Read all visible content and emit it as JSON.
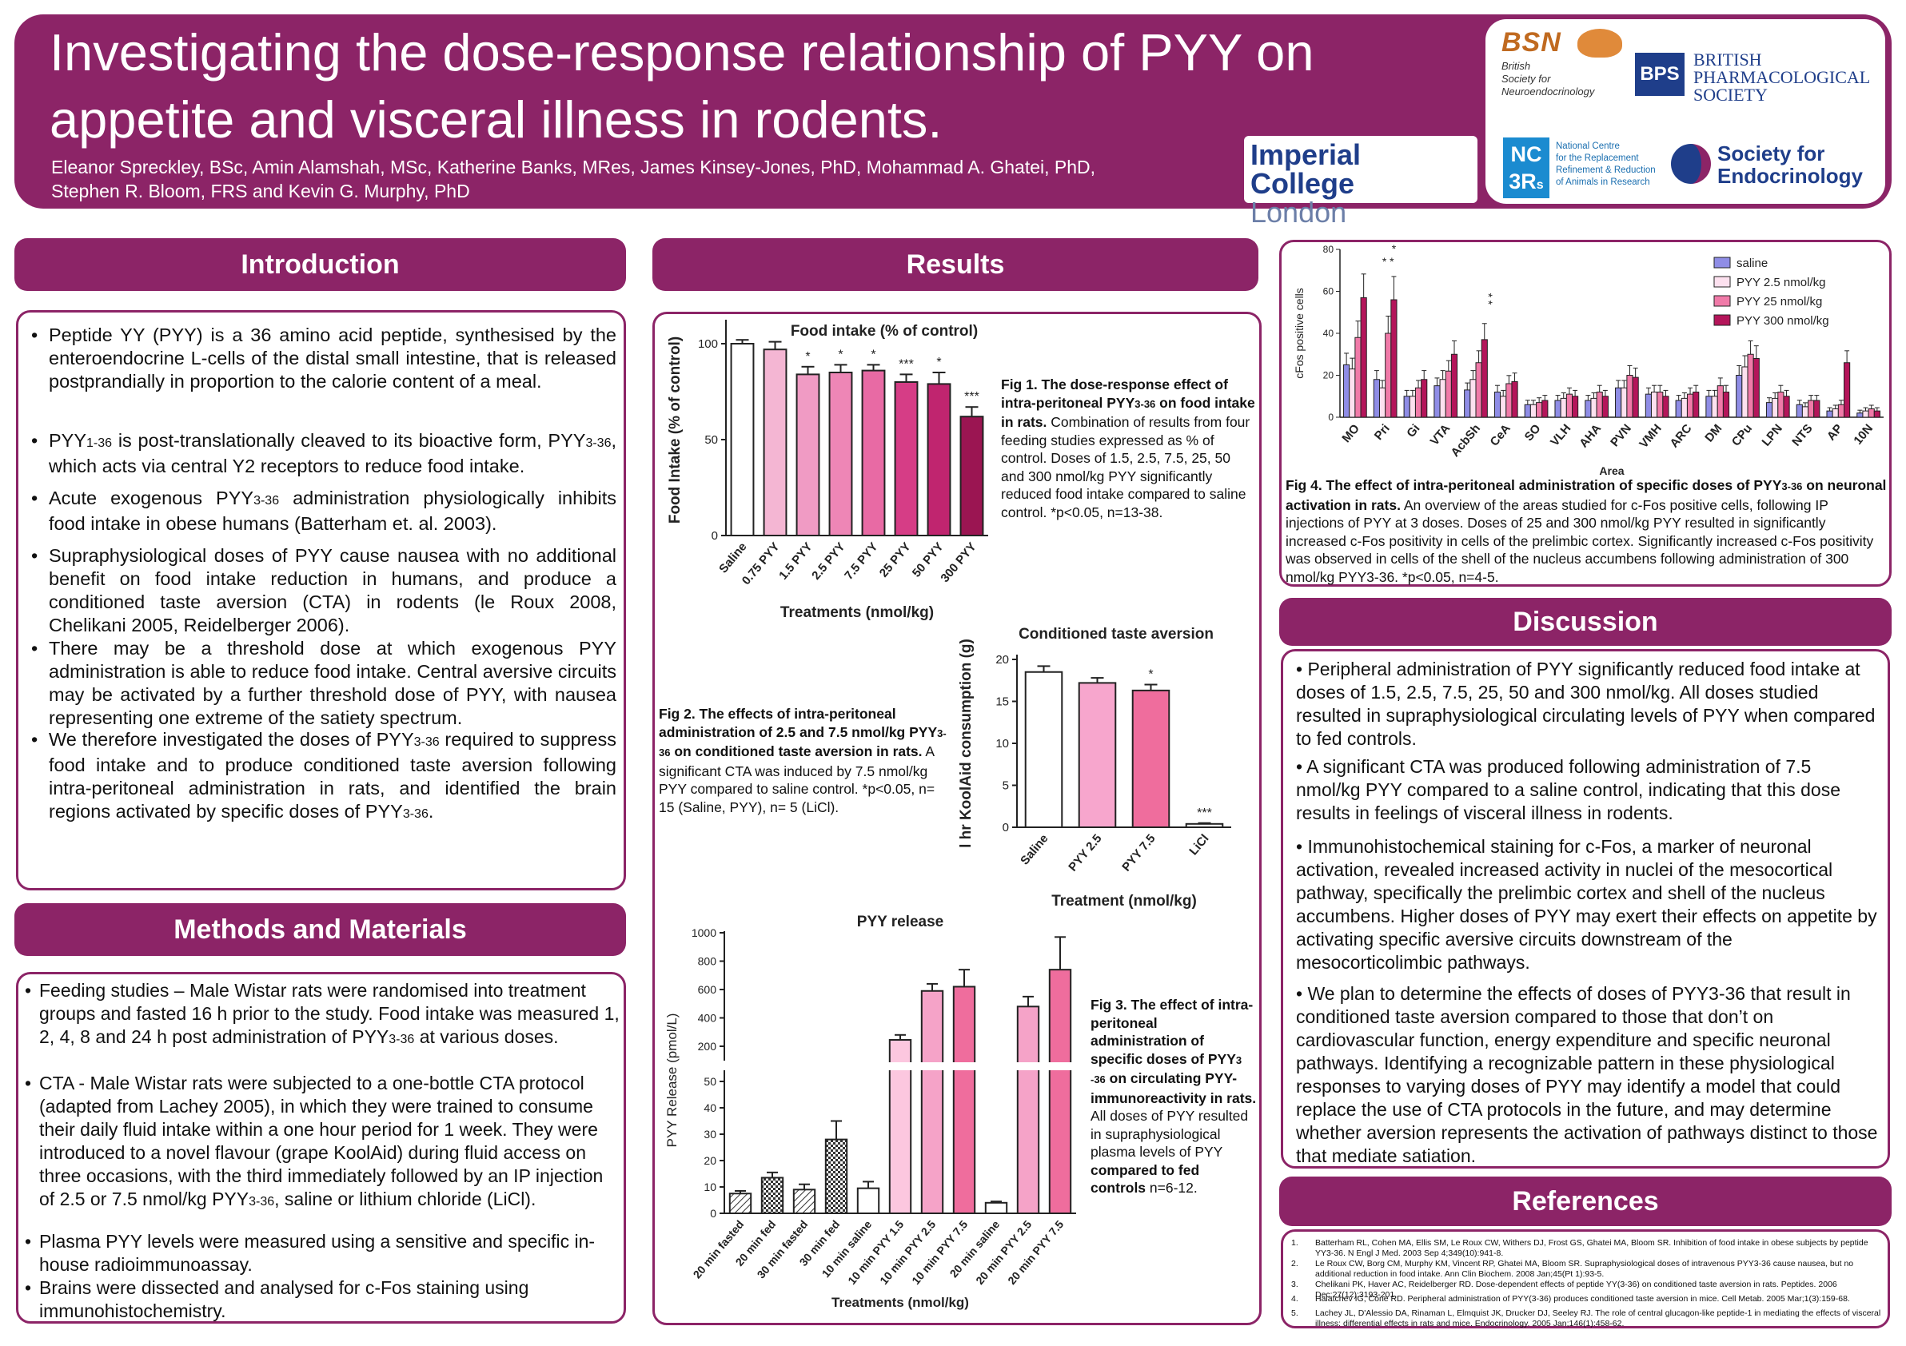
{
  "header": {
    "title_line1": "Investigating the dose-response relationship of PYY on",
    "title_line2": "appetite and visceral illness in rodents.",
    "authors_line1": "Eleanor Spreckley, BSc, Amin Alamshah, MSc, Katherine Banks, MRes, James Kinsey-Jones, PhD, Mohammad A. Ghatei, PhD,",
    "authors_line2": "Stephen R. Bloom, FRS and Kevin G. Murphy, PhD"
  },
  "logos": {
    "bsn_mark": "BSN",
    "bsn_text": [
      "British",
      "Society for",
      "Neuroendocrinology"
    ],
    "bps_mark": "BPS",
    "bps_text": [
      "BRITISH",
      "PHARMACOLOGICAL",
      "SOCIETY"
    ],
    "imperial_1": "Imperial College",
    "imperial_2": "London",
    "nc3rs_mark1": "NC",
    "nc3rs_mark2": "3R",
    "nc3rs_mark_sup": "s",
    "nc3rs_text": [
      "National Centre",
      "for the Replacement",
      "Refinement & Reduction",
      "of Animals in Research"
    ],
    "sfe_1": "Society for",
    "sfe_2": "Endocrinology"
  },
  "sections": {
    "introduction": "Introduction",
    "results": "Results",
    "methods": "Methods and Materials",
    "discussion": "Discussion",
    "references": "References"
  },
  "introduction": [
    {
      "pre": "Peptide YY (PYY) is a 36 amino acid peptide, synthesised by the enteroendocrine L-cells of the distal small intestine, that is released postprandially in proportion to the calorie content of a meal."
    },
    {
      "pre": "PYY",
      "sub": "1-36",
      "mid": " is post-translationally cleaved to its bioactive  form, PYY",
      "sub2": "3-36",
      "post": ", which acts via central Y2 receptors to reduce food intake."
    },
    {
      "pre": " Acute exogenous PYY",
      "sub": "3-36",
      "post": " administration physiologically inhibits food intake in obese humans (Batterham et. al. 2003)."
    },
    {
      "pre": " Supraphysiological doses of PYY cause nausea with no additional benefit on food intake reduction in humans, and produce a conditioned taste aversion (CTA) in rodents (le Roux 2008, Chelikani 2005, Reidelberger 2006)."
    },
    {
      "pre": " There may be a threshold dose at which exogenous PYY administration is able to reduce food intake. Central aversive circuits may be activated by a further threshold dose of PYY, with nausea representing one extreme of the satiety spectrum."
    },
    {
      "pre": "We therefore investigated the doses of PYY",
      "sub": "3-36",
      "mid": " required to suppress food intake and to produce conditioned taste aversion following intra-peritoneal administration in rats, and identified the brain regions activated by specific doses of PYY",
      "sub2": "3-36",
      "post": "."
    }
  ],
  "methods": [
    {
      "pre": "Feeding studies – Male Wistar rats were randomised into treatment groups and fasted 16 h prior to the study. Food intake was measured 1, 2, 4, 8 and 24 h post administration of PYY",
      "sub": "3-36",
      "post": " at various doses."
    },
    {
      "pre": "CTA - Male Wistar rats were subjected to a one-bottle CTA protocol (adapted from Lachey 2005), in which they were trained to consume their daily fluid intake within a one hour period for 1 week. They were introduced to a novel flavour (grape KoolAid) during fluid access on three occasions, with the third immediately followed by an IP injection of 2.5 or 7.5 nmol/kg PYY",
      "sub": "3-36",
      "post": ", saline or lithium chloride (LiCl)."
    },
    {
      "pre": "Plasma PYY levels were measured using a sensitive and specific in-house radioimmunoassay."
    },
    {
      "pre": "Brains were dissected and analysed for c-Fos staining using immunohistochemistry."
    }
  ],
  "fig1": {
    "bold1": "Fig 1. The dose-response effect of intra-peritoneal PYY",
    "sub": "3-36",
    "bold2": " on food intake in rats.",
    "text": " Combination of results from four feeding studies expressed as % of control. Doses of 1.5, 2.5, 7.5, 25, 50 and 300 nmol/kg PYY significantly reduced food intake compared to saline control. *p<0.05, n=13-38."
  },
  "fig2": {
    "bold1": "Fig 2. The effects of intra-peritoneal administration of 2.5 and 7.5 nmol/kg PYY",
    "sub": "3-36",
    "bold2": " on conditioned taste aversion in rats.",
    "text": " A significant CTA was induced by 7.5 nmol/kg PYY compared to saline control. *p<0.05, n= 15 (Saline, PYY), n= 5 (LiCl)."
  },
  "fig3": {
    "bold1": "Fig 3. The effect of intra-peritoneal administration of specific doses of PYY",
    "sub": "3 -36",
    "bold2": " on circulating PYY-immunoreactivity in rats.",
    "text": " All doses of PYY resulted in supraphysiological plasma levels of PYY ",
    "bold3": "compared to fed controls",
    "text2": " n=6-12."
  },
  "fig4": {
    "bold1": "Fig 4. The effect of intra-peritoneal administration of specific doses of PYY",
    "sub": "3-36",
    "bold2": " on neuronal activation in rats.",
    "text": "  An overview of the areas studied for c-Fos positive cells, following IP injections of PYY at 3 doses. Doses of 25 and 300 nmol/kg PYY resulted in significantly increased c-Fos positivity in cells of the prelimbic cortex. Significantly increased c-Fos positivity was observed in cells of the shell of the nucleus accumbens following administration of 300 nmol/kg PYY3-36. *p<0.05, n=4-5."
  },
  "discussion": [
    "• Peripheral administration of PYY significantly reduced food intake at doses of 1.5, 2.5, 7.5, 25, 50 and 300 nmol/kg. All doses studied resulted in supraphysiological circulating levels of PYY when compared to fed controls.",
    "• A significant CTA was produced following administration of 7.5 nmol/kg PYY compared to a saline control, indicating that this dose results in feelings of visceral illness in rodents.",
    "• Immunohistochemical staining for c-Fos, a marker of neuronal activation, revealed increased activity in nuclei of the mesocortical pathway, specifically the prelimbic cortex and shell of the nucleus accumbens. Higher doses of PYY may exert their effects on appetite by activating specific aversive circuits downstream of the mesocorticolimbic pathways.",
    "• We plan to determine the effects of doses of PYY3-36 that result in conditioned taste aversion compared to those that don’t on cardiovascular function,  energy expenditure and specific neuronal pathways. Identifying a recognizable pattern in these physiological responses to varying doses of PYY may identify a model that could replace the use of CTA protocols in the future, and may determine whether aversion represents the activation of pathways distinct to those that mediate satiation."
  ],
  "references": [
    {
      "n": "1.",
      "t": "Batterham RL, Cohen MA, Ellis SM, Le Roux CW, Withers DJ, Frost GS, Ghatei MA, Bloom SR. Inhibition of food intake in obese subjects by peptide YY3-36. N Engl J Med. 2003 Sep 4;349(10):941-8."
    },
    {
      "n": "2.",
      "t": "Le Roux CW, Borg CM, Murphy KM, Vincent RP, Ghatei MA, Bloom SR. Supraphysiological doses of intravenous PYY3-36 cause nausea, but no additional reduction in food intake. Ann Clin Biochem. 2008 Jan;45(Pt 1):93-5."
    },
    {
      "n": "3.",
      "t": "Chelikani PK, Haver AC, Reidelberger RD. Dose-dependent effects of peptide YY(3-36) on conditioned taste aversion in rats. Peptides. 2006 Dec;27(12):3193-201."
    },
    {
      "n": "4.",
      "t": "Halatchev IG, Cone RD. Peripheral administration of PYY(3-36) produces conditioned taste aversion in mice. Cell Metab. 2005 Mar;1(3):159-68."
    },
    {
      "n": "5.",
      "t": "Lachey JL, D'Alessio DA, Rinaman L, Elmquist JK, Drucker DJ, Seeley RJ. The role of central glucagon-like peptide-1 in mediating the effects of visceral illness: differential effects in rats and mice. Endocrinology. 2005 Jan;146(1):458-62."
    }
  ],
  "chart_data": [
    {
      "type": "bar",
      "title": "Food intake (% of control)",
      "ylabel": "Food Intake (% of control)",
      "xlabel": "Treatments (nmol/kg)",
      "ylim": [
        0,
        110
      ],
      "yticks": [
        0,
        50,
        100
      ],
      "categories": [
        "Saline",
        "0.75 PYY",
        "1.5 PYY",
        "2.5 PYY",
        "7.5 PYY",
        "25 PYY",
        "50 PYY",
        "300 PYY"
      ],
      "values": [
        100,
        97,
        84,
        85,
        86,
        80,
        79,
        62
      ],
      "errors": [
        2,
        4,
        4,
        4,
        3,
        4,
        6,
        5
      ],
      "significance": [
        "",
        "",
        "*",
        "*",
        "*",
        "***",
        "*",
        "***"
      ],
      "colors": [
        "#ffffff",
        "#f4b6d3",
        "#f09bc4",
        "#ee86b6",
        "#e86aa4",
        "#d63d86",
        "#c0256f",
        "#9b1552"
      ]
    },
    {
      "type": "bar",
      "title": "Conditioned taste aversion",
      "ylabel": "l hr KoolAid consumption (g)",
      "xlabel": "Treatment (nmol/kg)",
      "ylim": [
        0,
        20
      ],
      "yticks": [
        0,
        5,
        10,
        15,
        20
      ],
      "categories": [
        "Saline",
        "PYY 2.5",
        "PYY 7.5",
        "LiCl"
      ],
      "values": [
        18.5,
        17.2,
        16.3,
        0.4
      ],
      "errors": [
        0.7,
        0.6,
        0.7,
        0.1
      ],
      "significance": [
        "",
        "",
        "*",
        "***"
      ],
      "colors": [
        "#ffffff",
        "#f7a6cd",
        "#ef6d9d",
        "#ffffff"
      ]
    },
    {
      "type": "bar",
      "title": "PYY release",
      "ylabel": "PYY Release (pmol/L)",
      "xlabel": "Treatments (nmol/kg)",
      "axis_break": [
        50,
        200
      ],
      "yticks_lower": [
        0,
        10,
        20,
        30,
        40,
        50
      ],
      "yticks_upper": [
        200,
        400,
        600,
        800,
        1000
      ],
      "categories": [
        "20 min fasted",
        "20 min fed",
        "30 min fasted",
        "30 min fed",
        "10 min saline",
        "10 min PYY 1.5",
        "10 min PYY 2.5",
        "10 min PYY 7.5",
        "20 min saline",
        "20 min PYY 2.5",
        "20 min PYY 7.5"
      ],
      "values": [
        7.5,
        13.5,
        9,
        28,
        9.5,
        245,
        590,
        620,
        4,
        480,
        740
      ],
      "errors": [
        1,
        2,
        2,
        7,
        2.5,
        35,
        50,
        120,
        0.5,
        70,
        230
      ],
      "patterns": [
        "hatch",
        "check",
        "hatch",
        "check",
        "none",
        "none",
        "none",
        "none",
        "none",
        "none",
        "none"
      ],
      "colors": [
        "#ffffff",
        "#ffffff",
        "#ffffff",
        "#ffffff",
        "#ffffff",
        "#fcc7df",
        "#f5a3c8",
        "#ef6d9d",
        "#ffffff",
        "#f5a3c8",
        "#ef6d9d"
      ]
    },
    {
      "type": "bar",
      "ylabel": "cFos positive cells",
      "xlabel": "Area",
      "ylim": [
        0,
        80
      ],
      "yticks": [
        0,
        20,
        40,
        60,
        80
      ],
      "categories": [
        "MO",
        "Pri",
        "Gi",
        "VTA",
        "AcbSh",
        "CeA",
        "SO",
        "VLH",
        "AHA",
        "PVN",
        "VMH",
        "ARC",
        "DM",
        "CPu",
        "LPN",
        "NTS",
        "AP",
        "10N"
      ],
      "series": [
        {
          "name": "saline",
          "color": "#8f8de6",
          "values": [
            25,
            18,
            10,
            15,
            13,
            12,
            6,
            8,
            8,
            14,
            11,
            8,
            10,
            20,
            7,
            6,
            3,
            2
          ]
        },
        {
          "name": "PYY 2.5 nmol/kg",
          "color": "#fde1ef",
          "values": [
            23,
            14,
            10,
            18,
            18,
            10,
            6,
            9,
            9,
            14,
            12,
            9,
            10,
            24,
            9,
            5,
            4,
            3
          ]
        },
        {
          "name": "PYY 25 nmol/kg",
          "color": "#f07aa8",
          "values": [
            38,
            40,
            14,
            22,
            26,
            16,
            7,
            11,
            12,
            20,
            12,
            11,
            15,
            30,
            12,
            8,
            6,
            4
          ]
        },
        {
          "name": "PYY 300 nmol/kg",
          "color": "#b4155a",
          "values": [
            57,
            56,
            18,
            30,
            37,
            17,
            8,
            10,
            10,
            19,
            10,
            12,
            12,
            28,
            10,
            8,
            26,
            3
          ]
        }
      ],
      "significance": {
        "Pri_25": "* *",
        "Pri_300": "*",
        "AcbSh_300": "* *"
      }
    }
  ]
}
